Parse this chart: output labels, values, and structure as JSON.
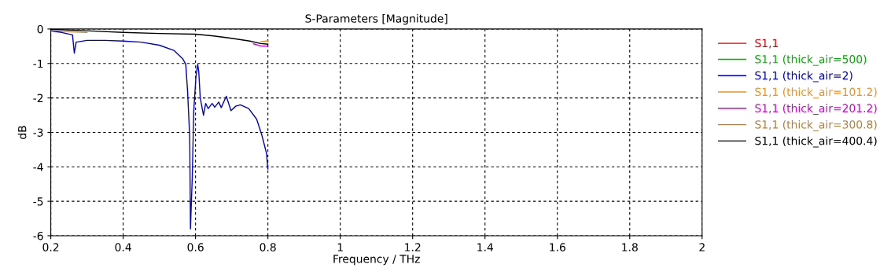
{
  "chart_data": {
    "type": "line",
    "title": "S-Parameters [Magnitude]",
    "xlabel": "Frequency / THz",
    "ylabel": "dB",
    "xlim": [
      0.2,
      2
    ],
    "xticks": [
      0.2,
      0.4,
      0.6,
      0.8,
      1,
      1.2,
      1.4,
      1.6,
      1.8,
      2
    ],
    "ylim": [
      -6,
      0
    ],
    "yticks": [
      -6,
      -5,
      -4,
      -3,
      -2,
      -1,
      0
    ],
    "grid": true,
    "legend": "right",
    "line_style": "solid",
    "marker": "none",
    "series": [
      {
        "name": "S1,1",
        "color": "#e00000"
      },
      {
        "name": "S1,1 (thick_air=500)",
        "color": "#00b000"
      },
      {
        "name": "S1,1 (thick_air=2)",
        "color": "#0000c8",
        "x": [
          0.2,
          0.23,
          0.26,
          0.265,
          0.27,
          0.3,
          0.35,
          0.4,
          0.45,
          0.5,
          0.54,
          0.565,
          0.573,
          0.578,
          0.584,
          0.586,
          0.591,
          0.595,
          0.601,
          0.606,
          0.609,
          0.613,
          0.622,
          0.628,
          0.635,
          0.646,
          0.653,
          0.664,
          0.671,
          0.685,
          0.698,
          0.711,
          0.724,
          0.747,
          0.769,
          0.783,
          0.796,
          0.8
        ],
        "values": [
          -0.05,
          -0.1,
          -0.17,
          -0.7,
          -0.38,
          -0.33,
          -0.33,
          -0.35,
          -0.38,
          -0.47,
          -0.62,
          -0.87,
          -1.02,
          -1.8,
          -3.15,
          -5.8,
          -4.3,
          -2.4,
          -1.4,
          -1.02,
          -1.25,
          -2.0,
          -2.5,
          -2.16,
          -2.31,
          -2.16,
          -2.27,
          -2.12,
          -2.28,
          -1.95,
          -2.37,
          -2.24,
          -2.2,
          -2.31,
          -2.62,
          -3.07,
          -3.6,
          -4.06
        ]
      },
      {
        "name": "S1,1 (thick_air=101.2)",
        "color": "#f09020",
        "x": [
          0.78,
          0.8
        ],
        "values": [
          -0.37,
          -0.34
        ]
      },
      {
        "name": "S1,1 (thick_air=201.2)",
        "color": "#d000d0",
        "x": [
          0.76,
          0.78,
          0.8
        ],
        "values": [
          -0.43,
          -0.49,
          -0.5
        ]
      },
      {
        "name": "S1,1 (thick_air=300.8)",
        "color": "#b08040",
        "x": [
          0.2,
          0.25,
          0.3
        ],
        "values": [
          -0.05,
          -0.08,
          -0.1
        ]
      },
      {
        "name": "S1,1 (thick_air=400.4)",
        "color": "#000000",
        "x": [
          0.2,
          0.3,
          0.4,
          0.5,
          0.6,
          0.65,
          0.7,
          0.75,
          0.78,
          0.8
        ],
        "values": [
          -0.01,
          -0.05,
          -0.1,
          -0.13,
          -0.15,
          -0.2,
          -0.27,
          -0.35,
          -0.42,
          -0.44
        ]
      }
    ]
  }
}
